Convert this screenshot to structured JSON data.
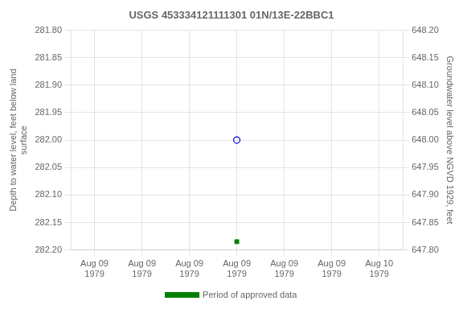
{
  "chart_data": {
    "type": "scatter",
    "title": "USGS 453334121111301 01N/13E-22BBC1",
    "ylabel": "Depth to water level, feet below land\nsurface",
    "y2label": "Groundwater level above NGVD 1929, feet",
    "categories": [
      "Aug 09\n1979",
      "Aug 09\n1979",
      "Aug 09\n1979",
      "Aug 09\n1979",
      "Aug 09\n1979",
      "Aug 09\n1979",
      "Aug 10\n1979"
    ],
    "series": [
      {
        "color": "#0000cc",
        "marker": "open_circle",
        "values": [
          null,
          null,
          null,
          282.0,
          null,
          null,
          null
        ]
      },
      {
        "name": "Period of approved data",
        "color": "#008000",
        "marker": "square",
        "values": [
          null,
          null,
          null,
          282.185,
          null,
          null,
          null
        ]
      }
    ],
    "ylim": [
      282.2,
      281.8
    ],
    "yticks": [
      {
        "value": 281.8,
        "label": "281.80"
      },
      {
        "value": 281.85,
        "label": "281.85"
      },
      {
        "value": 281.9,
        "label": "281.90"
      },
      {
        "value": 281.95,
        "label": "281.95"
      },
      {
        "value": 282.0,
        "label": "282.00"
      },
      {
        "value": 282.05,
        "label": "282.05"
      },
      {
        "value": 282.1,
        "label": "282.10"
      },
      {
        "value": 282.15,
        "label": "282.15"
      },
      {
        "value": 282.2,
        "label": "282.20"
      }
    ],
    "y2lim": [
      647.8,
      648.2
    ],
    "y2ticks": [
      {
        "value": 648.2,
        "label": "648.20"
      },
      {
        "value": 648.15,
        "label": "648.15"
      },
      {
        "value": 648.1,
        "label": "648.10"
      },
      {
        "value": 648.05,
        "label": "648.05"
      },
      {
        "value": 648.0,
        "label": "648.00"
      },
      {
        "value": 647.95,
        "label": "647.95"
      },
      {
        "value": 647.9,
        "label": "647.90"
      },
      {
        "value": 647.85,
        "label": "647.85"
      },
      {
        "value": 647.8,
        "label": "647.80"
      }
    ],
    "grid": true,
    "legend": "bottom"
  }
}
